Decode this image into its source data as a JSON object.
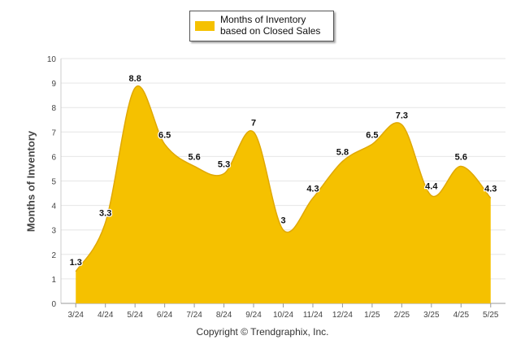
{
  "chart_data": {
    "type": "area",
    "categories": [
      "3/24",
      "4/24",
      "5/24",
      "6/24",
      "7/24",
      "8/24",
      "9/24",
      "10/24",
      "11/24",
      "12/24",
      "1/25",
      "2/25",
      "3/25",
      "4/25",
      "5/25"
    ],
    "series": [
      {
        "name": "Months of Inventory based on Closed Sales",
        "values": [
          1.3,
          3.3,
          8.8,
          6.5,
          5.6,
          5.3,
          7,
          3,
          4.3,
          5.8,
          6.5,
          7.3,
          4.4,
          5.6,
          4.3
        ]
      }
    ],
    "xlabel": "",
    "ylabel": "Months of Inventory",
    "ylim": [
      0,
      10
    ],
    "yticks": [
      "0",
      "1",
      "2",
      "3",
      "4",
      "5",
      "6",
      "7",
      "8",
      "9",
      "10"
    ],
    "data_labels": [
      "1.3",
      "3.3",
      "8.8",
      "6.5",
      "5.6",
      "5.3",
      "7",
      "3",
      "4.3",
      "5.8",
      "6.5",
      "7.3",
      "4.4",
      "5.6",
      "4.3"
    ],
    "grid": true,
    "legend_position": "top-center",
    "color": "#F5C100"
  },
  "footer": "Copyright © Trendgraphix, Inc."
}
